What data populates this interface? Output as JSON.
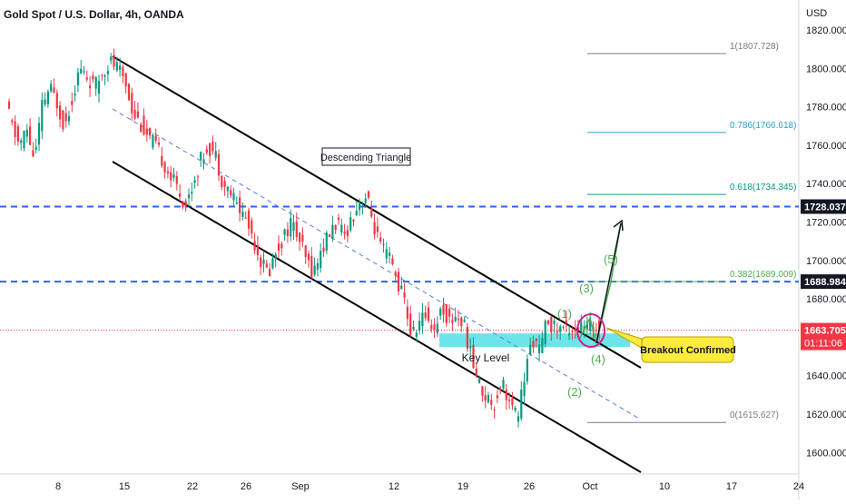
{
  "header": {
    "title": "Gold Spot / U.S. Dollar, 4h, OANDA"
  },
  "price_axis": {
    "currency": "USD"
  },
  "annotations": {
    "triangle_label": "Descending Triangle",
    "key_level_label": "Key Level",
    "breakout_label": "Breakout Confirmed",
    "waves": [
      "(1)",
      "(2)",
      "(3)",
      "(4)",
      "(5)"
    ]
  },
  "price_tags": {
    "upper": "1728.037",
    "lower": "1688.984",
    "current": "1663.705",
    "countdown": "01:11:06"
  },
  "fib_levels": [
    {
      "label": "1(1807.728)",
      "price": 1807.728,
      "color": "#787b86"
    },
    {
      "label": "0.786(1766.618)",
      "price": 1766.618,
      "color": "#26a2c7"
    },
    {
      "label": "0.618(1734.345)",
      "price": 1734.345,
      "color": "#089981"
    },
    {
      "label": "0.382(1689.009)",
      "price": 1689.009,
      "color": "#4caf50"
    },
    {
      "label": "0(1615.627)",
      "price": 1615.627,
      "color": "#787b86"
    }
  ],
  "colors": {
    "up": "#089981",
    "down": "#f23645",
    "hline": "#2962ff",
    "zone": "#5ce1e6",
    "current": "#f23645"
  },
  "chart_data": {
    "type": "candlestick",
    "title": "Gold Spot / U.S. Dollar, 4h, OANDA",
    "ylabel": "USD",
    "ylim": [
      1592,
      1828
    ],
    "yticks": [
      1600,
      1620,
      1640,
      1660,
      1680,
      1700,
      1720,
      1740,
      1760,
      1780,
      1800,
      1820
    ],
    "x_tick_labels": [
      "8",
      "15",
      "22",
      "26",
      "Sep",
      "12",
      "19",
      "26",
      "Oct",
      "10",
      "17",
      "24"
    ],
    "horizontal_levels": [
      1728.037,
      1688.984
    ],
    "current_price": 1663.705,
    "key_level_zone": [
      1655,
      1662
    ],
    "price_path": [
      [
        0,
        1785
      ],
      [
        1,
        1770
      ],
      [
        2,
        1760
      ],
      [
        3,
        1768
      ],
      [
        4,
        1752
      ],
      [
        5,
        1780
      ],
      [
        6,
        1790
      ],
      [
        7,
        1782
      ],
      [
        8,
        1770
      ],
      [
        9,
        1785
      ],
      [
        10,
        1800
      ],
      [
        11,
        1795
      ],
      [
        12,
        1790
      ],
      [
        13,
        1798
      ],
      [
        14,
        1804
      ],
      [
        15,
        1800
      ],
      [
        16,
        1794
      ],
      [
        17,
        1778
      ],
      [
        18,
        1772
      ],
      [
        19,
        1764
      ],
      [
        20,
        1760
      ],
      [
        21,
        1752
      ],
      [
        22,
        1744
      ],
      [
        23,
        1738
      ],
      [
        24,
        1728
      ],
      [
        25,
        1740
      ],
      [
        26,
        1752
      ],
      [
        27,
        1760
      ],
      [
        28,
        1755
      ],
      [
        29,
        1740
      ],
      [
        30,
        1735
      ],
      [
        31,
        1728
      ],
      [
        32,
        1722
      ],
      [
        33,
        1712
      ],
      [
        34,
        1700
      ],
      [
        35,
        1693
      ],
      [
        36,
        1705
      ],
      [
        37,
        1712
      ],
      [
        38,
        1720
      ],
      [
        39,
        1712
      ],
      [
        40,
        1700
      ],
      [
        41,
        1694
      ],
      [
        42,
        1705
      ],
      [
        43,
        1713
      ],
      [
        44,
        1720
      ],
      [
        45,
        1712
      ],
      [
        46,
        1722
      ],
      [
        47,
        1730
      ],
      [
        48,
        1733
      ],
      [
        49,
        1718
      ],
      [
        50,
        1705
      ],
      [
        51,
        1702
      ],
      [
        52,
        1690
      ],
      [
        53,
        1680
      ],
      [
        54,
        1660
      ],
      [
        55,
        1668
      ],
      [
        56,
        1672
      ],
      [
        57,
        1664
      ],
      [
        58,
        1676
      ],
      [
        59,
        1668
      ],
      [
        60,
        1672
      ],
      [
        61,
        1665
      ],
      [
        62,
        1648
      ],
      [
        63,
        1635
      ],
      [
        64,
        1628
      ],
      [
        65,
        1626
      ],
      [
        66,
        1638
      ],
      [
        67,
        1625
      ],
      [
        68,
        1618
      ],
      [
        69,
        1640
      ],
      [
        70,
        1660
      ],
      [
        71,
        1652
      ],
      [
        72,
        1670
      ],
      [
        73,
        1664
      ],
      [
        74,
        1665
      ]
    ]
  }
}
